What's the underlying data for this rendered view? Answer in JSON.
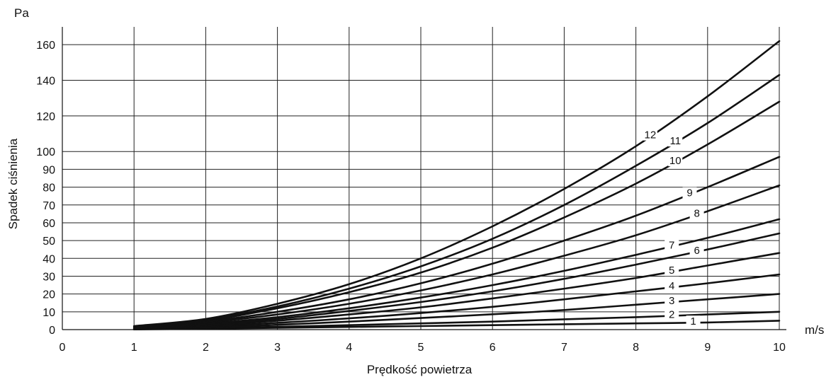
{
  "chart_data": {
    "type": "line",
    "title": "",
    "xlabel": "Prędkość powietrza",
    "ylabel": "Spadek ciśnienia",
    "x_unit": "m/s",
    "y_unit": "Pa",
    "xlim": [
      0,
      10
    ],
    "ylim": [
      0,
      170
    ],
    "grid": true,
    "x_ticks": [
      0,
      1,
      2,
      3,
      4,
      5,
      6,
      7,
      8,
      9,
      10
    ],
    "y_ticks": [
      0,
      10,
      20,
      30,
      40,
      50,
      60,
      70,
      80,
      90,
      100,
      120,
      140,
      160
    ],
    "line_color": "#111111",
    "series": [
      {
        "name": "1",
        "x": [
          1,
          2,
          3,
          4,
          5,
          6,
          7,
          8,
          9,
          10
        ],
        "y": [
          0.1,
          0.5,
          1,
          1.5,
          2,
          2.5,
          3,
          3.5,
          4,
          5
        ]
      },
      {
        "name": "2",
        "x": [
          1,
          2,
          3,
          4,
          5,
          6,
          7,
          8,
          9,
          10
        ],
        "y": [
          0.2,
          0.8,
          1.6,
          2.5,
          3.5,
          4.5,
          5.8,
          7,
          8.5,
          10
        ]
      },
      {
        "name": "3",
        "x": [
          1,
          2,
          3,
          4,
          5,
          6,
          7,
          8,
          9,
          10
        ],
        "y": [
          0.3,
          1.2,
          2.7,
          4.5,
          6.5,
          8.6,
          11,
          14,
          17,
          20
        ]
      },
      {
        "name": "4",
        "x": [
          1,
          2,
          3,
          4,
          5,
          6,
          7,
          8,
          9,
          10
        ],
        "y": [
          0.4,
          1.8,
          3.8,
          6.3,
          9.3,
          12.8,
          17,
          21.5,
          26,
          31
        ]
      },
      {
        "name": "5",
        "x": [
          1,
          2,
          3,
          4,
          5,
          6,
          7,
          8,
          9,
          10
        ],
        "y": [
          0.6,
          2.3,
          5,
          8.5,
          12.5,
          17.5,
          23,
          29,
          36,
          43
        ]
      },
      {
        "name": "6",
        "x": [
          1,
          2,
          3,
          4,
          5,
          6,
          7,
          8,
          9,
          10
        ],
        "y": [
          0.7,
          2.8,
          6,
          10.5,
          15.5,
          21.5,
          28.5,
          36.5,
          45,
          54
        ]
      },
      {
        "name": "7",
        "x": [
          1,
          2,
          3,
          4,
          5,
          6,
          7,
          8,
          9,
          10
        ],
        "y": [
          0.8,
          3.3,
          7,
          12,
          18,
          25,
          33,
          42,
          51.5,
          62
        ]
      },
      {
        "name": "8",
        "x": [
          1,
          2,
          3,
          4,
          5,
          6,
          7,
          8,
          9,
          10
        ],
        "y": [
          1,
          4,
          8.5,
          14.5,
          22,
          31,
          41.5,
          53,
          66.5,
          81
        ]
      },
      {
        "name": "9",
        "x": [
          1,
          2,
          3,
          4,
          5,
          6,
          7,
          8,
          9,
          10
        ],
        "y": [
          1.2,
          4.5,
          10,
          17,
          26,
          37,
          50,
          64,
          80,
          97
        ]
      },
      {
        "name": "10",
        "x": [
          1,
          2,
          3,
          4,
          5,
          6,
          7,
          8,
          9,
          10
        ],
        "y": [
          1.5,
          5,
          12,
          21,
          32,
          46,
          63,
          82,
          104,
          128
        ]
      },
      {
        "name": "11",
        "x": [
          1,
          2,
          3,
          4,
          5,
          6,
          7,
          8,
          9,
          10
        ],
        "y": [
          1.8,
          5.5,
          13,
          23,
          35.5,
          51,
          70,
          92,
          116,
          143
        ]
      },
      {
        "name": "12",
        "x": [
          1,
          2,
          3,
          4,
          5,
          6,
          7,
          8,
          9,
          10
        ],
        "y": [
          2,
          6,
          14.5,
          25.5,
          40,
          58,
          79,
          103,
          131,
          162
        ]
      }
    ]
  }
}
